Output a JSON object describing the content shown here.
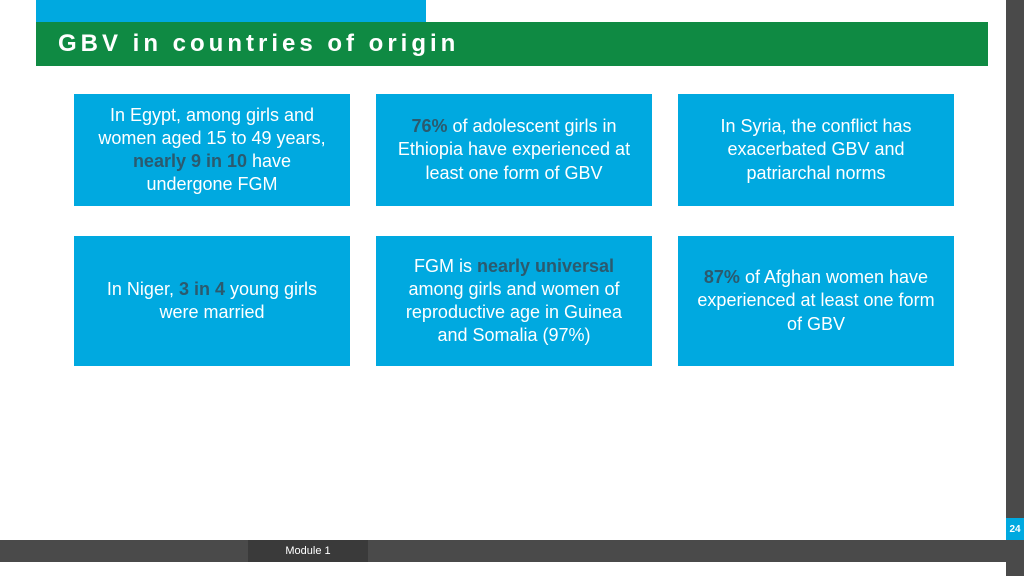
{
  "colors": {
    "accent_blue": "#00a9e0",
    "title_green": "#0f8a43",
    "dark_gray": "#4a4a4a",
    "darker_gray": "#3a3a3a",
    "bold_text": "#2b5a6e",
    "white": "#ffffff"
  },
  "title": "GBV in countries of origin",
  "cards": [
    {
      "pre": "In Egypt, among girls and women aged 15 to 49 years, ",
      "bold": "nearly 9 in 10",
      "post": " have undergone FGM"
    },
    {
      "pre": "",
      "bold": "76%",
      "post": " of adolescent girls in Ethiopia have experienced at least one form of GBV"
    },
    {
      "pre": "In Syria, the conflict has exacerbated GBV and patriarchal norms",
      "bold": "",
      "post": ""
    },
    {
      "pre": "In Niger, ",
      "bold": "3 in 4",
      "post": " young girls were married"
    },
    {
      "pre": "FGM is ",
      "bold": "nearly universal",
      "post": " among girls and women of reproductive age in Guinea and Somalia (97%)"
    },
    {
      "pre": "",
      "bold": "87%",
      "post": " of Afghan women have experienced at least one form of GBV"
    }
  ],
  "footer": {
    "module": "Module 1",
    "page": "24"
  }
}
